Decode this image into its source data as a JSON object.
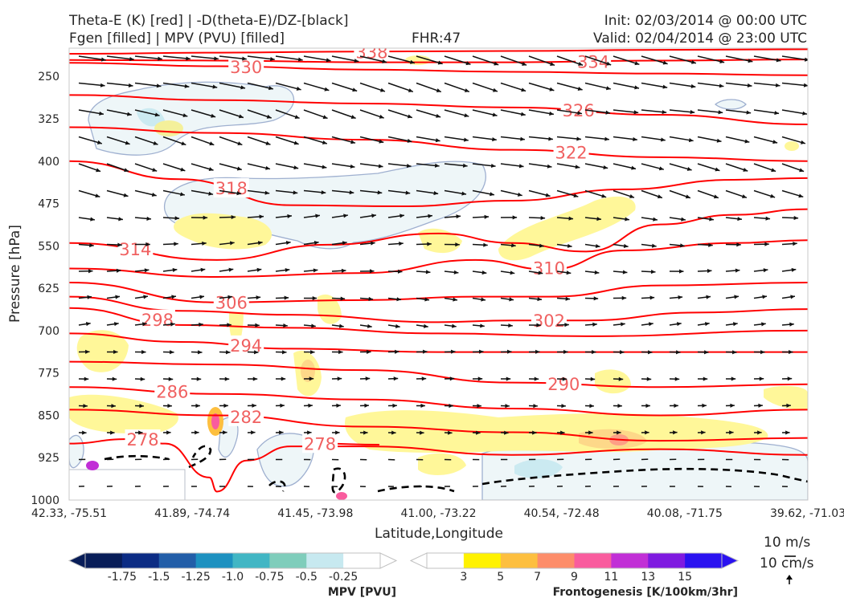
{
  "header": {
    "title_left_1": "Theta-E (K) [red] | -D(theta-E)/DZ-[black]",
    "title_left_2": "Fgen [filled] | MPV (PVU) [filled]",
    "fhr": "FHR:47",
    "init": "Init: 02/03/2014 @ 00:00 UTC",
    "valid": "Valid: 02/04/2014 @ 23:00 UTC"
  },
  "chart_data": {
    "type": "cross-section",
    "xlabel": "Latitude,Longitude",
    "ylabel": "Pressure [hPa]",
    "x_ticks": [
      "42.33, -75.51",
      "41.89, -74.74",
      "41.45, -73.98",
      "41.00, -73.22",
      "40.54, -72.48",
      "40.08, -71.75",
      "39.62, -71.03"
    ],
    "y_ticks": [
      250,
      325,
      400,
      475,
      550,
      625,
      700,
      775,
      850,
      925,
      1000
    ],
    "ylim": [
      1000,
      200
    ],
    "theta_e_color": "#ff0000",
    "isentropes": [
      {
        "value": 338,
        "label": "338",
        "pts": [
          [
            0,
            210
          ],
          [
            0.2,
            208
          ],
          [
            0.4,
            206
          ],
          [
            0.6,
            205
          ],
          [
            0.8,
            203
          ],
          [
            1,
            202
          ]
        ],
        "lx": 0.39
      },
      {
        "value": 334,
        "label": "334",
        "pts": [
          [
            0,
            221
          ],
          [
            0.2,
            222
          ],
          [
            0.4,
            225
          ],
          [
            0.6,
            225
          ],
          [
            0.8,
            222
          ],
          [
            1,
            220
          ]
        ],
        "lx": 0.69
      },
      {
        "value": 330,
        "label": "330",
        "pts": [
          [
            0,
            226
          ],
          [
            0.2,
            232
          ],
          [
            0.4,
            238
          ],
          [
            0.6,
            242
          ],
          [
            0.8,
            245
          ],
          [
            1,
            248
          ]
        ],
        "lx": 0.22
      },
      {
        "value": 326,
        "label": "326",
        "pts": [
          [
            0,
            283
          ],
          [
            0.2,
            292
          ],
          [
            0.4,
            298
          ],
          [
            0.6,
            305
          ],
          [
            0.8,
            318
          ],
          [
            1,
            335
          ]
        ],
        "lx": 0.67
      },
      {
        "value": 322,
        "label": "322",
        "pts": [
          [
            0,
            340
          ],
          [
            0.2,
            350
          ],
          [
            0.4,
            362
          ],
          [
            0.6,
            380
          ],
          [
            0.8,
            393
          ],
          [
            1,
            400
          ]
        ],
        "lx": 0.66
      },
      {
        "value": 318,
        "label": "318",
        "pts": [
          [
            0,
            400
          ],
          [
            0.15,
            432
          ],
          [
            0.3,
            478
          ],
          [
            0.45,
            480
          ],
          [
            0.6,
            470
          ],
          [
            0.75,
            450
          ],
          [
            0.9,
            433
          ],
          [
            1,
            430
          ]
        ],
        "lx": 0.2
      },
      {
        "value": 314,
        "label": "314",
        "pts": [
          [
            0,
            545
          ],
          [
            0.2,
            575
          ],
          [
            0.35,
            548
          ],
          [
            0.5,
            528
          ],
          [
            0.6,
            545
          ],
          [
            0.7,
            560
          ],
          [
            0.8,
            512
          ],
          [
            0.9,
            495
          ],
          [
            1,
            485
          ]
        ],
        "lx": 0.07
      },
      {
        "value": 310,
        "label": "310",
        "pts": [
          [
            0,
            590
          ],
          [
            0.2,
            605
          ],
          [
            0.4,
            598
          ],
          [
            0.55,
            575
          ],
          [
            0.65,
            592
          ],
          [
            0.75,
            558
          ],
          [
            0.9,
            545
          ],
          [
            1,
            540
          ]
        ],
        "lx": 0.63
      },
      {
        "value": 306,
        "label": "306",
        "pts": [
          [
            0,
            615
          ],
          [
            0.2,
            650
          ],
          [
            0.4,
            646
          ],
          [
            0.55,
            640
          ],
          [
            0.65,
            640
          ],
          [
            0.8,
            620
          ],
          [
            1,
            615
          ]
        ],
        "lx": 0.2
      },
      {
        "value": 302,
        "label": "302",
        "pts": [
          [
            0,
            640
          ],
          [
            0.15,
            665
          ],
          [
            0.3,
            672
          ],
          [
            0.5,
            685
          ],
          [
            0.6,
            682
          ],
          [
            0.7,
            682
          ],
          [
            0.85,
            668
          ],
          [
            1,
            662
          ]
        ],
        "lx": 0.63
      },
      {
        "value": 298,
        "label": "298",
        "pts": [
          [
            0,
            660
          ],
          [
            0.15,
            690
          ],
          [
            0.3,
            695
          ],
          [
            0.5,
            705
          ],
          [
            0.7,
            710
          ],
          [
            1,
            700
          ]
        ],
        "lx": 0.1
      },
      {
        "value": 294,
        "label": "294",
        "pts": [
          [
            0,
            705
          ],
          [
            0.15,
            720
          ],
          [
            0.3,
            732
          ],
          [
            0.5,
            738
          ],
          [
            0.7,
            738
          ],
          [
            1,
            738
          ]
        ],
        "lx": 0.22
      },
      {
        "value": 290,
        "label": "290",
        "pts": [
          [
            0,
            755
          ],
          [
            0.2,
            760
          ],
          [
            0.4,
            770
          ],
          [
            0.6,
            792
          ],
          [
            0.8,
            800
          ],
          [
            1,
            795
          ]
        ],
        "lx": 0.65
      },
      {
        "value": 286,
        "label": "286",
        "pts": [
          [
            0,
            800
          ],
          [
            0.2,
            812
          ],
          [
            0.4,
            822
          ],
          [
            0.6,
            838
          ],
          [
            0.8,
            850
          ],
          [
            1,
            840
          ]
        ],
        "lx": 0.12
      },
      {
        "value": 282,
        "label": "282",
        "pts": [
          [
            0,
            840
          ],
          [
            0.2,
            850
          ],
          [
            0.4,
            870
          ],
          [
            0.6,
            880
          ],
          [
            0.8,
            895
          ],
          [
            1,
            890
          ]
        ],
        "lx": 0.22
      },
      {
        "value": 278,
        "label": "278",
        "pts": [
          [
            0,
            900
          ],
          [
            0.08,
            892
          ],
          [
            0.13,
            900
          ],
          [
            0.19,
            960
          ],
          [
            0.2,
            985
          ],
          [
            0.24,
            930
          ],
          [
            0.3,
            905
          ],
          [
            0.4,
            905
          ],
          [
            0.6,
            920
          ],
          [
            0.8,
            910
          ],
          [
            1,
            920
          ]
        ],
        "lx": 0.08
      },
      {
        "value": 278,
        "label": "278",
        "pts": [
          [
            0.34,
            900
          ],
          [
            0.42,
            902
          ]
        ],
        "lx": 0.32
      }
    ],
    "mpv_colorbar": {
      "label": "MPV [PVU]",
      "ticks": [
        "-1.75",
        "-1.5",
        "-1.25",
        "-1.0",
        "-0.75",
        "-0.5",
        "-0.25"
      ],
      "colors": [
        "#081d58",
        "#0c2c84",
        "#225ea8",
        "#1d91c0",
        "#41b6c4",
        "#7fcdbb",
        "#c7e9f0",
        "#ffffff"
      ]
    },
    "fgen_colorbar": {
      "label": "Frontogenesis [K/100km/3hr]",
      "ticks": [
        "3",
        "5",
        "7",
        "9",
        "11",
        "13",
        "15"
      ],
      "colors": [
        "#ffffff",
        "#fff200",
        "#fdbf3f",
        "#fd8d6a",
        "#f95c9e",
        "#c12fd6",
        "#7f1ae0",
        "#2a12f0"
      ]
    },
    "wind_key": {
      "u": "10 m/s",
      "w": "10 cm/s"
    }
  }
}
